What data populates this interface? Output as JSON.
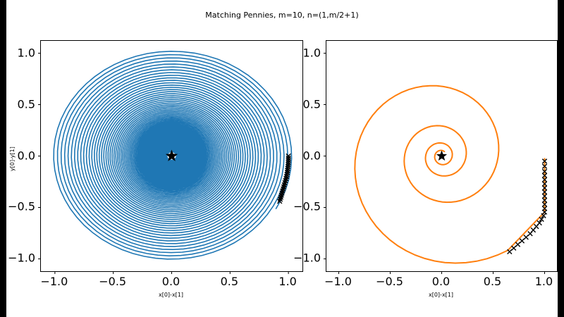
{
  "title": "Matching Pennies, m=10, n=(1,m/2+1)",
  "chart_data": [
    {
      "type": "line",
      "name": "left-phase-portrait",
      "xlabel": "x[0]-x[1]",
      "ylabel": "y[0]-y[1]",
      "xlim": [
        -1.12,
        1.12
      ],
      "ylim": [
        -1.12,
        1.12
      ],
      "xticks": [
        -1.0,
        -0.5,
        0.0,
        0.5,
        1.0
      ],
      "yticks": [
        -1.0,
        -0.5,
        0.0,
        0.5,
        1.0
      ],
      "xtick_labels": [
        "−1.0",
        "−0.5",
        "0.0",
        "0.5",
        "1.0"
      ],
      "ytick_labels": [
        "−1.0",
        "−0.5",
        "0.0",
        "0.5",
        "1.0"
      ],
      "grid": false,
      "series": [
        {
          "name": "trajectory-spiral-blue",
          "kind": "spiral",
          "color": "#1f77b4",
          "linewidth": 1.6,
          "r_start": 1.03,
          "r_end": 0.04,
          "turns": 100,
          "start_angle_deg": -30,
          "direction": "ccw-inward"
        },
        {
          "name": "iterate-connector",
          "kind": "line",
          "color": "#000000",
          "linewidth": 1.2,
          "points": [
            [
              0.925,
              -0.44
            ],
            [
              0.95,
              -0.34
            ],
            [
              0.975,
              -0.24
            ],
            [
              0.99,
              -0.16
            ],
            [
              1.0,
              -0.04
            ],
            [
              1.0,
              0.0
            ]
          ]
        },
        {
          "name": "recent-iterates-markers",
          "kind": "markers",
          "marker": "x",
          "color": "#000000",
          "points": [
            [
              0.925,
              -0.44
            ],
            [
              0.93,
              -0.42
            ],
            [
              0.935,
              -0.4
            ],
            [
              0.94,
              -0.38
            ],
            [
              0.945,
              -0.36
            ],
            [
              0.95,
              -0.34
            ],
            [
              0.955,
              -0.32
            ],
            [
              0.96,
              -0.3
            ],
            [
              0.965,
              -0.28
            ],
            [
              0.97,
              -0.26
            ],
            [
              0.975,
              -0.24
            ],
            [
              0.98,
              -0.22
            ],
            [
              0.984,
              -0.2
            ],
            [
              0.987,
              -0.18
            ],
            [
              0.99,
              -0.16
            ],
            [
              0.992,
              -0.14
            ],
            [
              0.994,
              -0.12
            ],
            [
              0.996,
              -0.1
            ],
            [
              0.998,
              -0.08
            ],
            [
              0.999,
              -0.06
            ],
            [
              1.0,
              -0.04
            ],
            [
              1.0,
              -0.02
            ],
            [
              1.0,
              0.0
            ]
          ]
        },
        {
          "name": "equilibrium-star",
          "kind": "star",
          "color": "#000000",
          "point": [
            0.0,
            0.0
          ],
          "size": 9
        }
      ]
    },
    {
      "type": "line",
      "name": "right-phase-portrait",
      "xlabel": "x[0]-x[1]",
      "ylabel": "",
      "xlim": [
        -1.12,
        1.12
      ],
      "ylim": [
        -1.12,
        1.12
      ],
      "xticks": [
        -1.0,
        -0.5,
        0.0,
        0.5,
        1.0
      ],
      "yticks": [
        -1.0,
        -0.5,
        0.0,
        0.5,
        1.0
      ],
      "xtick_labels": [
        "−1.0",
        "−0.5",
        "0.0",
        "0.5",
        "1.0"
      ],
      "ytick_labels": [
        "−1.0",
        "−0.5",
        "0.0",
        "0.5",
        "1.0"
      ],
      "grid": false,
      "series": [
        {
          "name": "trajectory-spiral-orange",
          "kind": "spiral",
          "color": "#ff7f0e",
          "linewidth": 2.0,
          "r_start": 0.05,
          "r_end": 1.12,
          "turns": 3.7,
          "start_angle_deg": 53,
          "direction": "ccw-outward"
        },
        {
          "name": "trajectory-tail",
          "kind": "line",
          "color": "#ff7f0e",
          "linewidth": 2.0,
          "points": [
            [
              0.64,
              -0.92
            ],
            [
              1.0,
              -0.545
            ],
            [
              1.0,
              -0.02
            ]
          ]
        },
        {
          "name": "recent-iterates-markers",
          "kind": "markers",
          "marker": "x",
          "color": "#000000",
          "points": [
            [
              0.66,
              -0.93
            ],
            [
              0.7,
              -0.895
            ],
            [
              0.74,
              -0.86
            ],
            [
              0.78,
              -0.825
            ],
            [
              0.82,
              -0.79
            ],
            [
              0.86,
              -0.755
            ],
            [
              0.89,
              -0.72
            ],
            [
              0.92,
              -0.685
            ],
            [
              0.95,
              -0.65
            ],
            [
              0.97,
              -0.615
            ],
            [
              0.99,
              -0.58
            ],
            [
              1.0,
              -0.545
            ],
            [
              1.0,
              -0.51
            ],
            [
              1.0,
              -0.47
            ],
            [
              1.0,
              -0.43
            ],
            [
              1.0,
              -0.39
            ],
            [
              1.0,
              -0.35
            ],
            [
              1.0,
              -0.31
            ],
            [
              1.0,
              -0.27
            ],
            [
              1.0,
              -0.23
            ],
            [
              1.0,
              -0.19
            ],
            [
              1.0,
              -0.15
            ],
            [
              1.0,
              -0.1
            ],
            [
              1.0,
              -0.05
            ]
          ]
        },
        {
          "name": "equilibrium-star",
          "kind": "star",
          "color": "#000000",
          "point": [
            0.0,
            0.0
          ],
          "size": 8
        }
      ]
    }
  ]
}
